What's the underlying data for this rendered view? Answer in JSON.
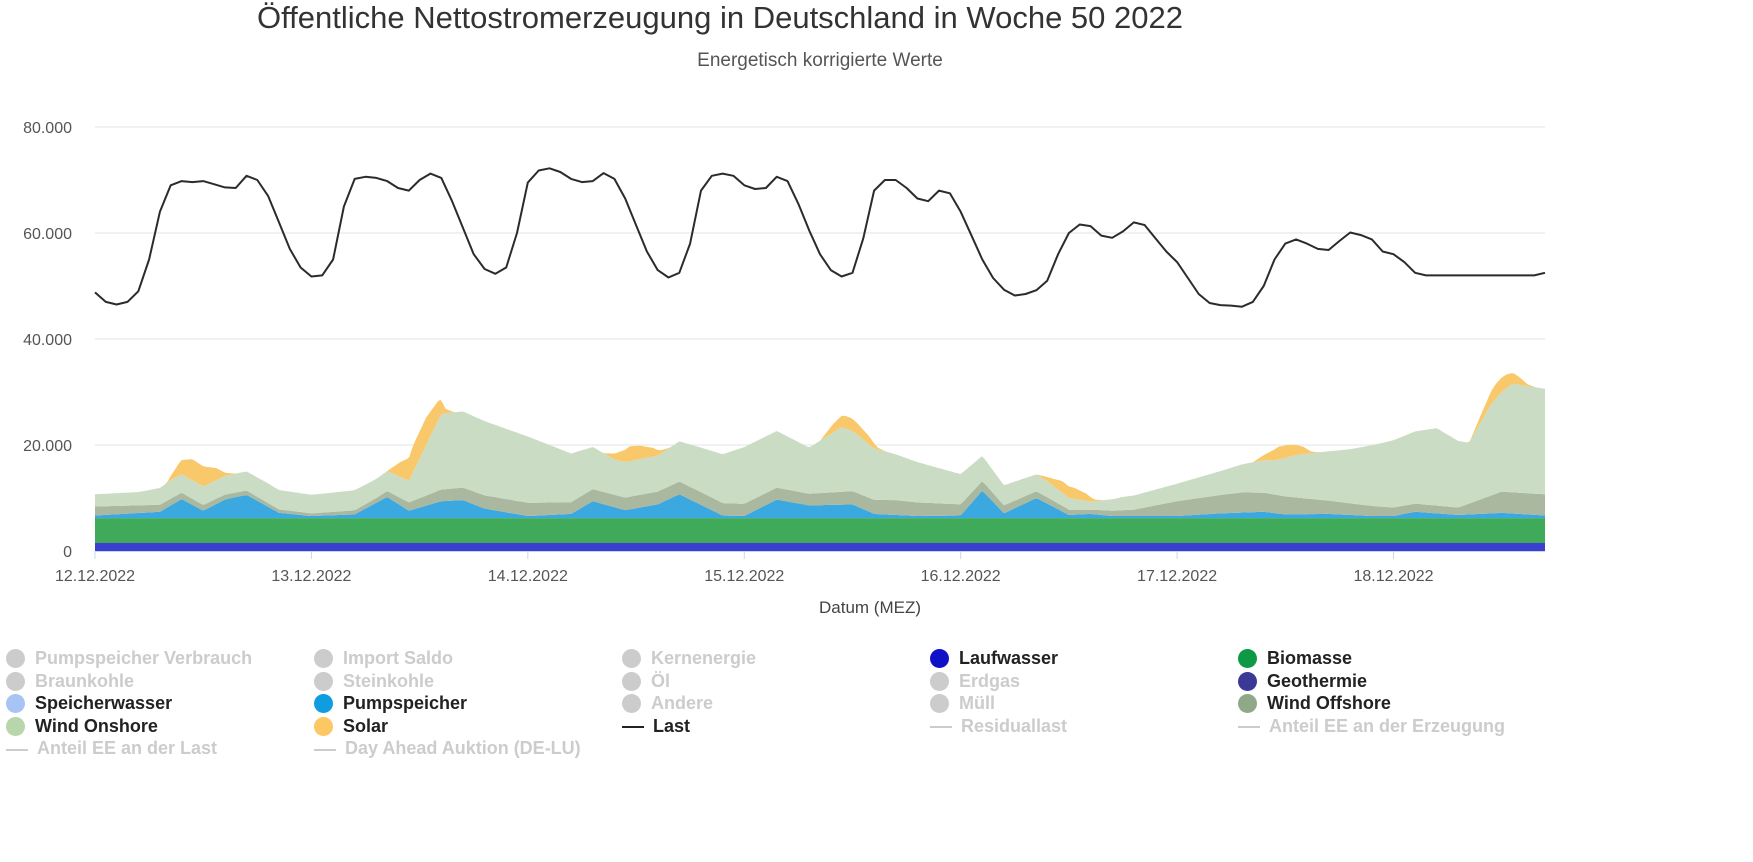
{
  "title": "Öffentliche Nettostromerzeugung in Deutschland in Woche 50 2022",
  "subtitle": "Energetisch korrigierte Werte",
  "chart_data": {
    "type": "area",
    "title": "Öffentliche Nettostromerzeugung in Deutschland in Woche 50 2022",
    "subtitle": "Energetisch korrigierte Werte",
    "xlabel": "Datum (MEZ)",
    "ylabel": "",
    "ylim": [
      0,
      80000
    ],
    "yticks": [
      0,
      20000,
      40000,
      60000,
      80000
    ],
    "ytick_labels": [
      "0",
      "20.000",
      "40.000",
      "60.000",
      "80.000"
    ],
    "xlim": [
      0,
      6.7
    ],
    "x_unit": "days since 12.12.2022 00:00",
    "x_ticks": [
      0,
      1,
      2,
      3,
      4,
      5,
      6
    ],
    "x_tick_labels": [
      "12.12.2022",
      "13.12.2022",
      "14.12.2022",
      "15.12.2022",
      "16.12.2022",
      "17.12.2022",
      "18.12.2022"
    ],
    "grid": true,
    "stacked": true,
    "series": [
      {
        "name": "Laufwasser",
        "color": "#3a3fd1",
        "type": "area",
        "x": [
          0,
          6.7
        ],
        "values": [
          1500,
          1500
        ]
      },
      {
        "name": "Biomasse",
        "color": "#3eaa5a",
        "type": "area",
        "x": [
          0,
          6.7
        ],
        "values": [
          4700,
          4700
        ]
      },
      {
        "name": "Pumpspeicher",
        "color": "#3ba8e0",
        "type": "area",
        "x": [
          0,
          0.3,
          0.4,
          0.5,
          0.6,
          0.7,
          0.85,
          1.0,
          1.2,
          1.35,
          1.45,
          1.6,
          1.7,
          1.8,
          2.0,
          2.2,
          2.3,
          2.45,
          2.6,
          2.7,
          2.9,
          3.0,
          3.15,
          3.3,
          3.5,
          3.6,
          3.8,
          4.0,
          4.1,
          4.2,
          4.35,
          4.5,
          4.6,
          4.7,
          5.0,
          5.2,
          5.4,
          5.5,
          5.7,
          5.9,
          6.0,
          6.1,
          6.3,
          6.5,
          6.7
        ],
        "values": [
          500,
          1200,
          3600,
          1400,
          3500,
          4400,
          1000,
          400,
          700,
          4000,
          1400,
          3200,
          3400,
          1800,
          400,
          800,
          3200,
          1500,
          2600,
          4500,
          500,
          400,
          3500,
          2400,
          2600,
          800,
          400,
          500,
          5200,
          900,
          3800,
          600,
          800,
          400,
          400,
          900,
          1200,
          700,
          800,
          400,
          400,
          1200,
          600,
          1000,
          500
        ]
      },
      {
        "name": "Wind Offshore",
        "color": "#a9b89f",
        "type": "area",
        "x": [
          0,
          0.4,
          0.7,
          1.0,
          1.3,
          1.6,
          1.8,
          2.0,
          2.2,
          2.5,
          2.8,
          3.0,
          3.3,
          3.7,
          4.0,
          4.2,
          4.4,
          4.6,
          4.8,
          5.0,
          5.3,
          5.5,
          5.7,
          6.0,
          6.3,
          6.5,
          6.7
        ],
        "values": [
          1700,
          1200,
          800,
          500,
          900,
          2200,
          2500,
          2500,
          2200,
          2400,
          2400,
          2300,
          2200,
          2800,
          2100,
          1500,
          1200,
          800,
          1200,
          2800,
          3800,
          3400,
          2500,
          1600,
          1400,
          4000,
          4000
        ]
      },
      {
        "name": "Wind Onshore",
        "color": "#cadcc4",
        "type": "area",
        "x": [
          0,
          0.2,
          0.35,
          0.55,
          0.8,
          1.0,
          1.2,
          1.3,
          1.45,
          1.6,
          1.7,
          1.8,
          2.0,
          2.2,
          2.4,
          2.6,
          2.9,
          3.0,
          3.15,
          3.3,
          3.45,
          3.6,
          3.8,
          4.0,
          4.2,
          4.4,
          4.6,
          4.75,
          5.0,
          5.2,
          5.45,
          5.55,
          5.8,
          6.0,
          6.2,
          6.35,
          6.45,
          6.55,
          6.7
        ],
        "values": [
          2300,
          2500,
          3500,
          3500,
          3700,
          3500,
          3800,
          3600,
          4100,
          14300,
          14400,
          14000,
          12500,
          9200,
          6700,
          6800,
          9200,
          10700,
          10700,
          8700,
          12200,
          9700,
          7600,
          5700,
          3800,
          3000,
          1500,
          2500,
          3300,
          4500,
          6500,
          8000,
          10200,
          12700,
          14600,
          11500,
          17200,
          20500,
          19900
        ]
      },
      {
        "name": "Solar",
        "color": "#f9c86a",
        "type": "area",
        "x": [
          0,
          0.33,
          0.39,
          0.45,
          0.5,
          0.56,
          0.6,
          0.65,
          1.0,
          1.35,
          1.41,
          1.47,
          1.53,
          1.59,
          1.62,
          1.66,
          2.0,
          2.35,
          2.41,
          2.47,
          2.52,
          2.58,
          2.62,
          2.66,
          3.0,
          3.35,
          3.41,
          3.47,
          3.52,
          3.58,
          3.62,
          3.66,
          4.0,
          4.35,
          4.41,
          4.47,
          4.52,
          4.58,
          4.62,
          4.66,
          5.0,
          5.35,
          5.41,
          5.47,
          5.52,
          5.58,
          5.62,
          5.66,
          6.0,
          6.35,
          6.41,
          6.47,
          6.52,
          6.58,
          6.62,
          6.66,
          6.7
        ],
        "values": [
          0,
          0,
          2400,
          4000,
          3800,
          2300,
          600,
          0,
          0,
          0,
          2800,
          5000,
          5200,
          3500,
          800,
          0,
          0,
          0,
          1300,
          2800,
          2500,
          1600,
          500,
          0,
          0,
          0,
          1600,
          2400,
          2200,
          1500,
          300,
          0,
          0,
          0,
          1000,
          2200,
          2100,
          1400,
          300,
          0,
          0,
          0,
          1200,
          2400,
          2300,
          1500,
          300,
          0,
          0,
          0,
          1500,
          2800,
          2600,
          1500,
          300,
          0,
          0
        ]
      },
      {
        "name": "Last",
        "color": "#2b2b2b",
        "type": "line",
        "x": [
          0,
          0.05,
          0.1,
          0.15,
          0.2,
          0.25,
          0.3,
          0.35,
          0.4,
          0.45,
          0.5,
          0.55,
          0.6,
          0.65,
          0.7,
          0.75,
          0.8,
          0.85,
          0.9,
          0.95,
          1.0,
          1.05,
          1.1,
          1.15,
          1.2,
          1.25,
          1.3,
          1.35,
          1.4,
          1.45,
          1.5,
          1.55,
          1.6,
          1.65,
          1.7,
          1.75,
          1.8,
          1.85,
          1.9,
          1.95,
          2.0,
          2.05,
          2.1,
          2.15,
          2.2,
          2.25,
          2.3,
          2.35,
          2.4,
          2.45,
          2.5,
          2.55,
          2.6,
          2.65,
          2.7,
          2.75,
          2.8,
          2.85,
          2.9,
          2.95,
          3.0,
          3.05,
          3.1,
          3.15,
          3.2,
          3.25,
          3.3,
          3.35,
          3.4,
          3.45,
          3.5,
          3.55,
          3.6,
          3.65,
          3.7,
          3.75,
          3.8,
          3.85,
          3.9,
          3.95,
          4.0,
          4.05,
          4.1,
          4.15,
          4.2,
          4.25,
          4.3,
          4.35,
          4.4,
          4.45,
          4.5,
          4.55,
          4.6,
          4.65,
          4.7,
          4.75,
          4.8,
          4.85,
          4.9,
          4.95,
          5.0,
          5.05,
          5.1,
          5.15,
          5.2,
          5.25,
          5.3,
          5.35,
          5.4,
          5.45,
          5.5,
          5.55,
          5.6,
          5.65,
          5.7,
          5.75,
          5.8,
          5.85,
          5.9,
          5.95,
          6.0,
          6.05,
          6.1,
          6.15,
          6.2,
          6.25,
          6.3,
          6.35,
          6.4,
          6.45,
          6.5,
          6.55,
          6.6,
          6.65,
          6.7
        ],
        "values": [
          48800,
          47000,
          46500,
          47000,
          49000,
          55000,
          64000,
          69000,
          69800,
          69600,
          69800,
          69200,
          68600,
          68500,
          70800,
          70000,
          67000,
          62000,
          57000,
          53500,
          51800,
          52000,
          55000,
          65000,
          70200,
          70600,
          70400,
          69800,
          68500,
          68000,
          70000,
          71200,
          70400,
          66000,
          61000,
          56000,
          53200,
          52300,
          53500,
          60000,
          69500,
          71800,
          72200,
          71500,
          70200,
          69600,
          69800,
          71300,
          70200,
          66500,
          61500,
          56500,
          53000,
          51600,
          52500,
          58000,
          68000,
          70800,
          71200,
          70800,
          69000,
          68300,
          68500,
          70600,
          69800,
          65500,
          60500,
          56000,
          53000,
          51800,
          52500,
          59000,
          68000,
          70000,
          70000,
          68500,
          66500,
          66000,
          68000,
          67500,
          64000,
          59500,
          55000,
          51500,
          49300,
          48200,
          48500,
          49200,
          51000,
          56000,
          60000,
          61600,
          61300,
          59500,
          59100,
          60300,
          62000,
          61500,
          59000,
          56500,
          54500,
          51500,
          48500,
          46800,
          46400,
          46300,
          46100,
          47000,
          50000,
          55000,
          58000,
          58800,
          58000,
          57000,
          56800,
          58500,
          60100,
          59600,
          58800,
          56500,
          56000,
          54500,
          52500,
          52000,
          52000,
          52000,
          52000,
          52000,
          52000,
          52000,
          52000,
          52000,
          52000,
          52000,
          52500
        ]
      }
    ]
  },
  "legend": {
    "items": [
      {
        "label": "Pumpspeicher Verbrauch",
        "color": "#cccccc",
        "marker": "dot",
        "active": false
      },
      {
        "label": "Import Saldo",
        "color": "#cccccc",
        "marker": "dot",
        "active": false
      },
      {
        "label": "Kernenergie",
        "color": "#cccccc",
        "marker": "dot",
        "active": false
      },
      {
        "label": "Laufwasser",
        "color": "#1010c8",
        "marker": "dot",
        "active": true
      },
      {
        "label": "Biomasse",
        "color": "#0e9a44",
        "marker": "dot",
        "active": true
      },
      {
        "label": "Braunkohle",
        "color": "#cccccc",
        "marker": "dot",
        "active": false
      },
      {
        "label": "Steinkohle",
        "color": "#cccccc",
        "marker": "dot",
        "active": false
      },
      {
        "label": "Öl",
        "color": "#cccccc",
        "marker": "dot",
        "active": false
      },
      {
        "label": "Erdgas",
        "color": "#cccccc",
        "marker": "dot",
        "active": false
      },
      {
        "label": "Geothermie",
        "color": "#3a3a96",
        "marker": "dot",
        "active": true
      },
      {
        "label": "Speicherwasser",
        "color": "#a8c4f5",
        "marker": "dot",
        "active": true
      },
      {
        "label": "Pumpspeicher",
        "color": "#0f9de0",
        "marker": "dot",
        "active": true
      },
      {
        "label": "Andere",
        "color": "#cccccc",
        "marker": "dot",
        "active": false
      },
      {
        "label": "Müll",
        "color": "#cccccc",
        "marker": "dot",
        "active": false
      },
      {
        "label": "Wind Offshore",
        "color": "#8fa888",
        "marker": "dot",
        "active": true
      },
      {
        "label": "Wind Onshore",
        "color": "#b8d5ac",
        "marker": "dot",
        "active": true
      },
      {
        "label": "Solar",
        "color": "#fbc863",
        "marker": "dot",
        "active": true
      },
      {
        "label": "Last",
        "color": "#222222",
        "marker": "line",
        "active": true
      },
      {
        "label": "Residuallast",
        "color": "#cccccc",
        "marker": "line",
        "active": false
      },
      {
        "label": "Anteil EE an der Erzeugung",
        "color": "#cccccc",
        "marker": "line",
        "active": false
      },
      {
        "label": "Anteil EE an der Last",
        "color": "#cccccc",
        "marker": "line",
        "active": false
      },
      {
        "label": "Day Ahead Auktion (DE-LU)",
        "color": "#cccccc",
        "marker": "line",
        "active": false
      }
    ]
  }
}
